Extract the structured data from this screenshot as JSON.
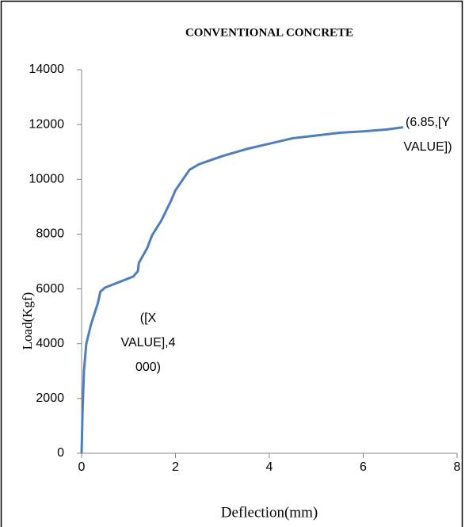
{
  "chart_data": {
    "type": "line",
    "title": "CONVENTIONAL CONCRETE",
    "xlabel": "Deflection(mm)",
    "ylabel": "Load(Kgf)",
    "xlim": [
      0,
      8
    ],
    "xticks": [
      0,
      2,
      4,
      6,
      8
    ],
    "ylim": [
      0,
      14000
    ],
    "yticks": [
      0,
      2000,
      4000,
      6000,
      8000,
      10000,
      12000,
      14000
    ],
    "grid": false,
    "series": [
      {
        "name": "Load",
        "color": "#4f7ebc",
        "x": [
          0,
          0.02,
          0.05,
          0.1,
          0.2,
          0.35,
          0.4,
          0.5,
          0.8,
          1.1,
          1.2,
          1.22,
          1.4,
          1.5,
          1.7,
          1.9,
          2.0,
          2.2,
          2.3,
          2.5,
          3,
          3.5,
          4,
          4.5,
          5,
          5.5,
          6,
          6.5,
          6.85
        ],
        "values": [
          0,
          1500,
          3000,
          4000,
          4700,
          5500,
          5900,
          6050,
          6250,
          6450,
          6650,
          6950,
          7500,
          7950,
          8500,
          9200,
          9600,
          10100,
          10350,
          10550,
          10850,
          11100,
          11300,
          11500,
          11600,
          11700,
          11750,
          11820,
          11900
        ]
      }
    ],
    "annotations": [
      {
        "lines": [
          "(6.85,[Y",
          "VALUE])"
        ]
      },
      {
        "lines": [
          "([X",
          "VALUE],4",
          "000)"
        ]
      }
    ]
  }
}
